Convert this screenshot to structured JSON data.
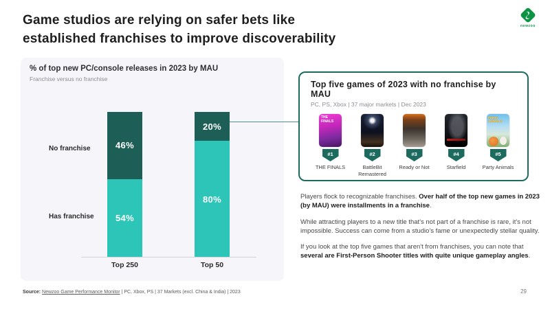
{
  "slide": {
    "title_line1": "Game studios are relying on safer bets like",
    "title_line2": "established franchises to improve discoverability",
    "page_number": "29"
  },
  "logo": {
    "text": "newzoo"
  },
  "chart_panel": {
    "title": "% of top new PC/console releases in 2023 by MAU",
    "subtitle": "Franchise versus no franchise"
  },
  "chart_data": {
    "type": "bar",
    "stacked": true,
    "categories": [
      "Top 250",
      "Top 50"
    ],
    "series": [
      {
        "name": "No franchise",
        "color": "#1d5f57",
        "values": [
          46,
          20
        ]
      },
      {
        "name": "Has franchise",
        "color": "#2cc5b8",
        "values": [
          54,
          80
        ]
      }
    ],
    "value_labels": [
      [
        "46%",
        "20%"
      ],
      [
        "54%",
        "80%"
      ]
    ],
    "value_format": "percent",
    "ylim": [
      0,
      100
    ],
    "grid": false,
    "legend": "row labels at left aligned to Top 250 segments"
  },
  "top_games_panel": {
    "title": "Top five games of 2023 with no franchise by MAU",
    "subtitle": "PC, PS, Xbox | 37 major markets | Dec 2023",
    "border_color": "#1d6b5e",
    "games": [
      {
        "rank": "#1",
        "name": "THE FINALS",
        "cover_text": "THE FINALS"
      },
      {
        "rank": "#2",
        "name": "BattleBit Remastered",
        "cover_text": ""
      },
      {
        "rank": "#3",
        "name": "Ready or Not",
        "cover_text": ""
      },
      {
        "rank": "#4",
        "name": "Starfield",
        "cover_text": ""
      },
      {
        "rank": "#5",
        "name": "Party Animals",
        "cover_text": "PARTY ANIMALS"
      }
    ]
  },
  "body_text": {
    "p1_pre": "Players flock to recognizable franchises. ",
    "p1_bold": "Over half of the top new games in 2023 (by MAU) were installments in a franchise",
    "p1_post": ".",
    "p2": "While attracting players to a new title that's not part of a franchise is rare, it's not impossible. Success can come from a studio's fame or unexpectedly stellar quality.",
    "p3_pre": "If you look at the top five games that aren't from franchises, you can note that ",
    "p3_bold": "several are First-Person Shooter titles with quite unique gameplay angles",
    "p3_post": "."
  },
  "footer": {
    "source_label": "Source:",
    "source_link": "Newzoo Game Performance Monitor",
    "source_rest": " | PC, Xbox, PS | 37 Markets (excl. China & India) | 2023"
  },
  "colors": {
    "accent_dark_teal": "#1d5f57",
    "accent_light_teal": "#2cc5b8",
    "panel_background": "#f5f5fa",
    "panel_border_green": "#1d6b5e",
    "connector_line": "#4f918a",
    "brand_green": "#0c9444"
  }
}
